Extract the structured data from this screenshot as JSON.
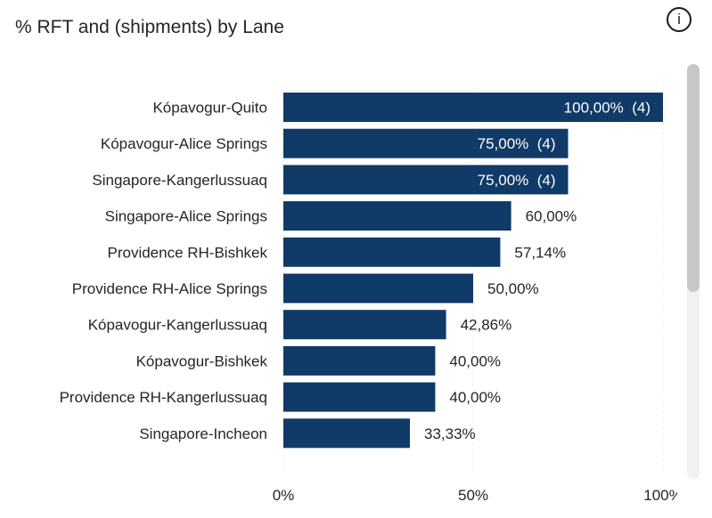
{
  "header": {
    "title": "% RFT and (shipments) by Lane",
    "info_icon": "info-icon",
    "info_glyph": "i"
  },
  "chart_data": {
    "type": "bar",
    "orientation": "horizontal",
    "title": "% RFT and (shipments) by Lane",
    "xlim": [
      0,
      100
    ],
    "x_ticks": [
      {
        "value": 0,
        "label": "0%"
      },
      {
        "value": 50,
        "label": "50%"
      },
      {
        "value": 100,
        "label": "100%"
      }
    ],
    "grid": true,
    "colors": {
      "bar": "#103a67"
    },
    "categories": [
      "Kópavogur-Quito",
      "Kópavogur-Alice Springs",
      "Singapore-Kangerlussuaq",
      "Singapore-Alice Springs",
      "Providence RH-Bishkek",
      "Providence RH-Alice Springs",
      "Kópavogur-Kangerlussuaq",
      "Kópavogur-Bishkek",
      "Providence RH-Kangerlussuaq",
      "Singapore-Incheon"
    ],
    "values": [
      100,
      75,
      75,
      60,
      57.14,
      50,
      42.86,
      40,
      40,
      33.33
    ],
    "labels": [
      "100,00%  (4)",
      "75,00%  (4)",
      "75,00%  (4)",
      "60,00%",
      "57,14%",
      "50,00%",
      "42,86%",
      "40,00%",
      "40,00%",
      "33,33%"
    ],
    "label_inside": [
      true,
      true,
      true,
      false,
      false,
      false,
      false,
      false,
      false,
      false
    ]
  }
}
